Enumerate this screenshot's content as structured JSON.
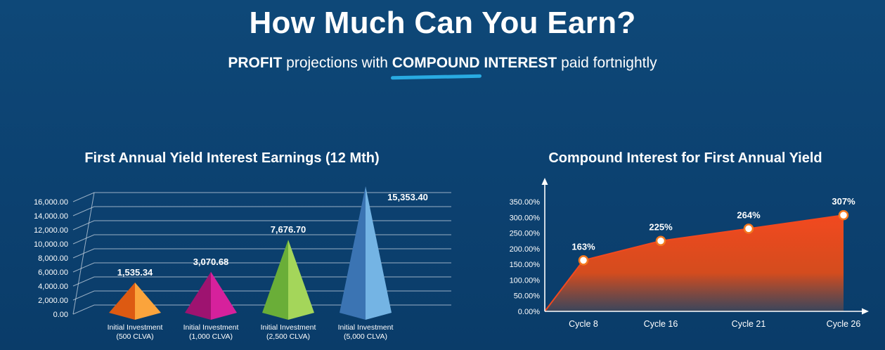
{
  "colors": {
    "background": "#0C4271",
    "accent_underline": "#29ABE2",
    "axis": "#FFFFFF",
    "gridline": "#C9D6E2"
  },
  "header": {
    "title": "How Much Can You Earn?",
    "subtitle_parts": [
      {
        "text": "PROFIT",
        "bold": true,
        "underline": false
      },
      {
        "text": " projections with ",
        "bold": false,
        "underline": false
      },
      {
        "text": "COMPOUND",
        "bold": true,
        "underline": true
      },
      {
        "text": " INTEREST",
        "bold": true,
        "underline": false
      },
      {
        "text": " paid fortnightly",
        "bold": false,
        "underline": false
      }
    ]
  },
  "chart_data": [
    {
      "type": "bar",
      "variant": "3d-pyramid",
      "title": "First Annual Yield Interest Earnings (12 Mth)",
      "categories": [
        "Initial Investment (500 CLVA)",
        "Initial Investment (1,000 CLVA)",
        "Initial Investment (2,500 CLVA)",
        "Initial Investment (5,000 CLVA)"
      ],
      "values": [
        1535.34,
        3070.68,
        7676.7,
        15353.4
      ],
      "value_labels": [
        "1,535.34",
        "3,070.68",
        "7,676.70",
        "15,353.40"
      ],
      "colors": [
        {
          "dark": "#DD5A12",
          "light": "#FBA43C"
        },
        {
          "dark": "#9E1370",
          "light": "#D6219C"
        },
        {
          "dark": "#6AAE38",
          "light": "#A4D65A"
        },
        {
          "dark": "#3B74B3",
          "light": "#74B4E4"
        }
      ],
      "ylim": [
        0,
        16000
      ],
      "ytick_values": [
        0,
        2000,
        4000,
        6000,
        8000,
        10000,
        12000,
        14000,
        16000
      ],
      "ytick_labels": [
        "0.00",
        "2,000.00",
        "4,000.00",
        "6,000.00",
        "8,000.00",
        "10,000.00",
        "12,000.00",
        "14,000.00",
        "16,000.00"
      ],
      "grid": true,
      "legend": "none"
    },
    {
      "type": "area",
      "title": "Compound Interest for First Annual Yield",
      "categories": [
        "Cycle 8",
        "Cycle 16",
        "Cycle 21",
        "Cycle 26"
      ],
      "values": [
        163,
        225,
        264,
        307
      ],
      "value_labels": [
        "163%",
        "225%",
        "264%",
        "307%"
      ],
      "area_color_top": "#F2491F",
      "area_color_mid": "#D44C1E",
      "area_color_bottom": "#40475A",
      "marker_fill": "#FFFFFF",
      "marker_ring": "#F4791F",
      "ylim": [
        0,
        350
      ],
      "ytick_values": [
        0,
        50,
        100,
        150,
        200,
        250,
        300,
        350
      ],
      "ytick_labels": [
        "0.00%",
        "50.00%",
        "100.00%",
        "150.00%",
        "200.00%",
        "250.00%",
        "300.00%",
        "350.00%"
      ],
      "grid": false,
      "legend": "none"
    }
  ]
}
